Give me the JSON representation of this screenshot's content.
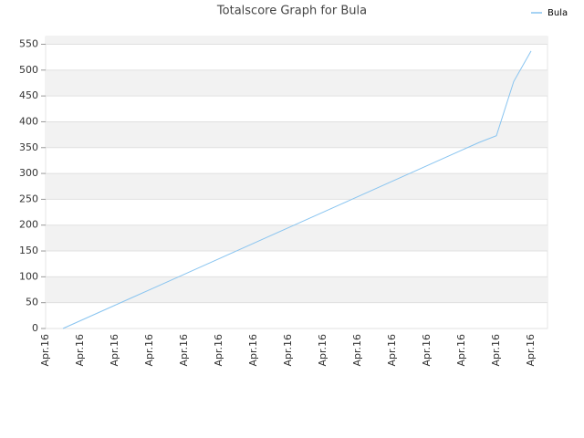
{
  "chart_data": {
    "type": "line",
    "title": "Totalscore Graph for Bula",
    "categories": [
      "Apr.16",
      null,
      "Apr.16",
      null,
      "Apr.16",
      null,
      "Apr.16",
      null,
      "Apr.16",
      null,
      "Apr.16",
      null,
      "Apr.16",
      null,
      "Apr.16",
      null,
      "Apr.16",
      null,
      "Apr.16",
      null,
      "Apr.16",
      null,
      "Apr.16",
      null,
      "Apr.16",
      null,
      "Apr.16",
      null,
      "Apr.16"
    ],
    "series": [
      {
        "name": "Bula",
        "color": "#88c4f0",
        "values": [
          null,
          0,
          15,
          30,
          45,
          60,
          75,
          90,
          105,
          120,
          135,
          150,
          165,
          180,
          195,
          210,
          225,
          240,
          255,
          270,
          285,
          300,
          315,
          330,
          345,
          360,
          373,
          478,
          537
        ]
      }
    ],
    "ylim": [
      0,
      565
    ],
    "yticks": [
      0,
      50,
      100,
      150,
      200,
      250,
      300,
      350,
      400,
      450,
      500,
      550
    ],
    "grid": true,
    "legend": "top-right"
  }
}
